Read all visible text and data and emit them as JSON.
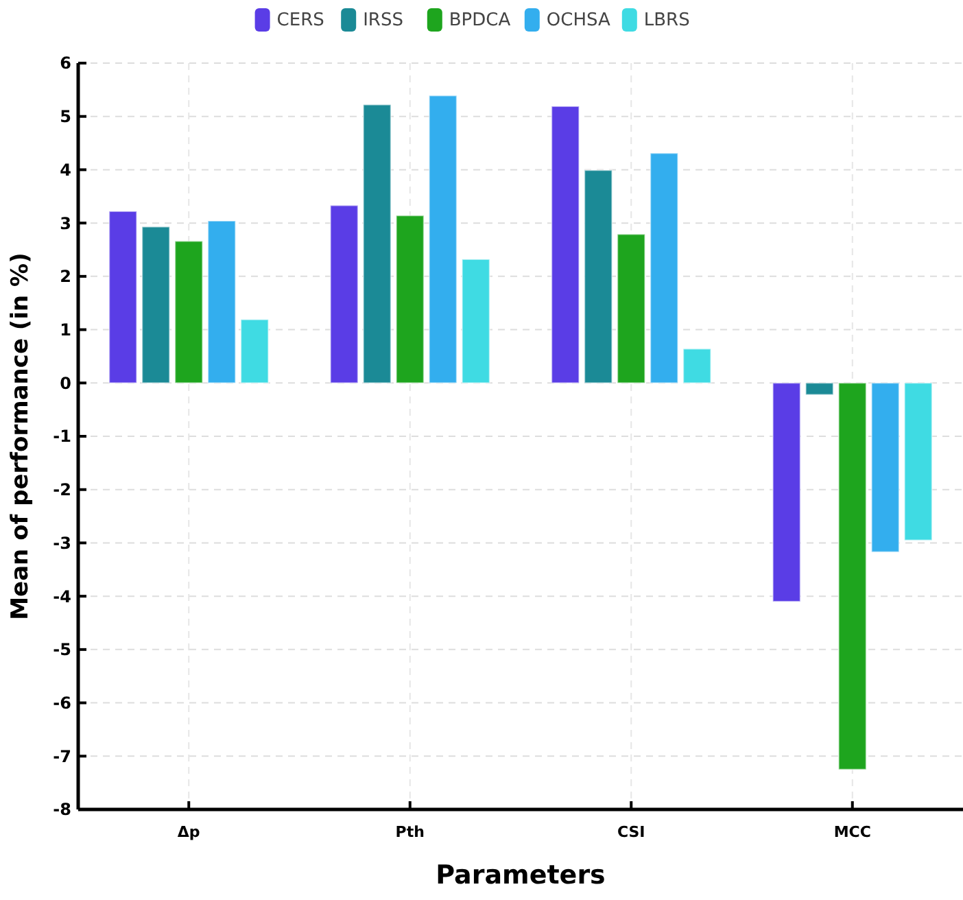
{
  "chart_data": {
    "type": "bar",
    "xlabel": "Parameters",
    "ylabel": "Mean of performance (in %)",
    "categories": [
      "Δp",
      "Pth",
      "CSI",
      "MCC"
    ],
    "series": [
      {
        "name": "CERS",
        "color": "#5a3de6",
        "values": [
          3.22,
          3.33,
          5.19,
          -4.1
        ]
      },
      {
        "name": "IRSS",
        "color": "#1b8a96",
        "values": [
          2.93,
          5.22,
          3.99,
          -0.22
        ]
      },
      {
        "name": "BPDCA",
        "color": "#1ea51e",
        "values": [
          2.66,
          3.14,
          2.79,
          -7.25
        ]
      },
      {
        "name": "OCHSA",
        "color": "#33aeee",
        "values": [
          3.04,
          5.39,
          4.31,
          -3.17
        ]
      },
      {
        "name": "LBRS",
        "color": "#3fdbe3",
        "values": [
          1.19,
          2.32,
          0.64,
          -2.95
        ]
      }
    ],
    "ylim": [
      -8,
      6
    ],
    "yticks": [
      -8,
      -7,
      -6,
      -5,
      -4,
      -3,
      -2,
      -1,
      0,
      1,
      2,
      3,
      4,
      5,
      6
    ],
    "grid": true,
    "legend": "top"
  }
}
